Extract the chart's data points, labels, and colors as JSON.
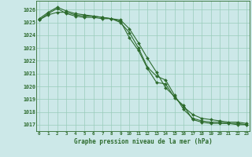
{
  "title": "Graphe pression niveau de la mer (hPa)",
  "background_color": "#cce8e8",
  "grid_color": "#99ccbb",
  "line_color": "#2d6b2d",
  "x_labels": [
    "0",
    "1",
    "2",
    "3",
    "4",
    "5",
    "6",
    "7",
    "8",
    "9",
    "10",
    "11",
    "12",
    "13",
    "14",
    "15",
    "16",
    "17",
    "18",
    "19",
    "20",
    "21",
    "22",
    "23"
  ],
  "ylim": [
    1016.5,
    1026.7
  ],
  "yticks": [
    1017,
    1018,
    1019,
    1020,
    1021,
    1022,
    1023,
    1024,
    1025,
    1026
  ],
  "series": [
    [
      1025.3,
      1025.8,
      1026.2,
      1025.9,
      1025.7,
      1025.6,
      1025.5,
      1025.4,
      1025.3,
      1025.0,
      1024.2,
      1023.0,
      1021.5,
      1020.8,
      1020.5,
      1019.3,
      1018.2,
      1017.5,
      1017.3,
      1017.2,
      1017.2,
      1017.1,
      1017.1,
      1017.0
    ],
    [
      1025.2,
      1025.7,
      1026.1,
      1025.7,
      1025.5,
      1025.4,
      1025.4,
      1025.3,
      1025.3,
      1025.1,
      1023.8,
      1022.8,
      1021.4,
      1020.3,
      1020.2,
      1019.1,
      1018.5,
      1017.4,
      1017.2,
      1017.1,
      1017.1,
      1017.1,
      1017.0,
      1017.0
    ],
    [
      1025.2,
      1025.6,
      1025.8,
      1025.8,
      1025.6,
      1025.5,
      1025.5,
      1025.4,
      1025.3,
      1025.2,
      1024.5,
      1023.4,
      1022.2,
      1021.1,
      1019.9,
      1019.2,
      1018.4,
      1017.8,
      1017.5,
      1017.4,
      1017.3,
      1017.2,
      1017.2,
      1017.1
    ]
  ]
}
